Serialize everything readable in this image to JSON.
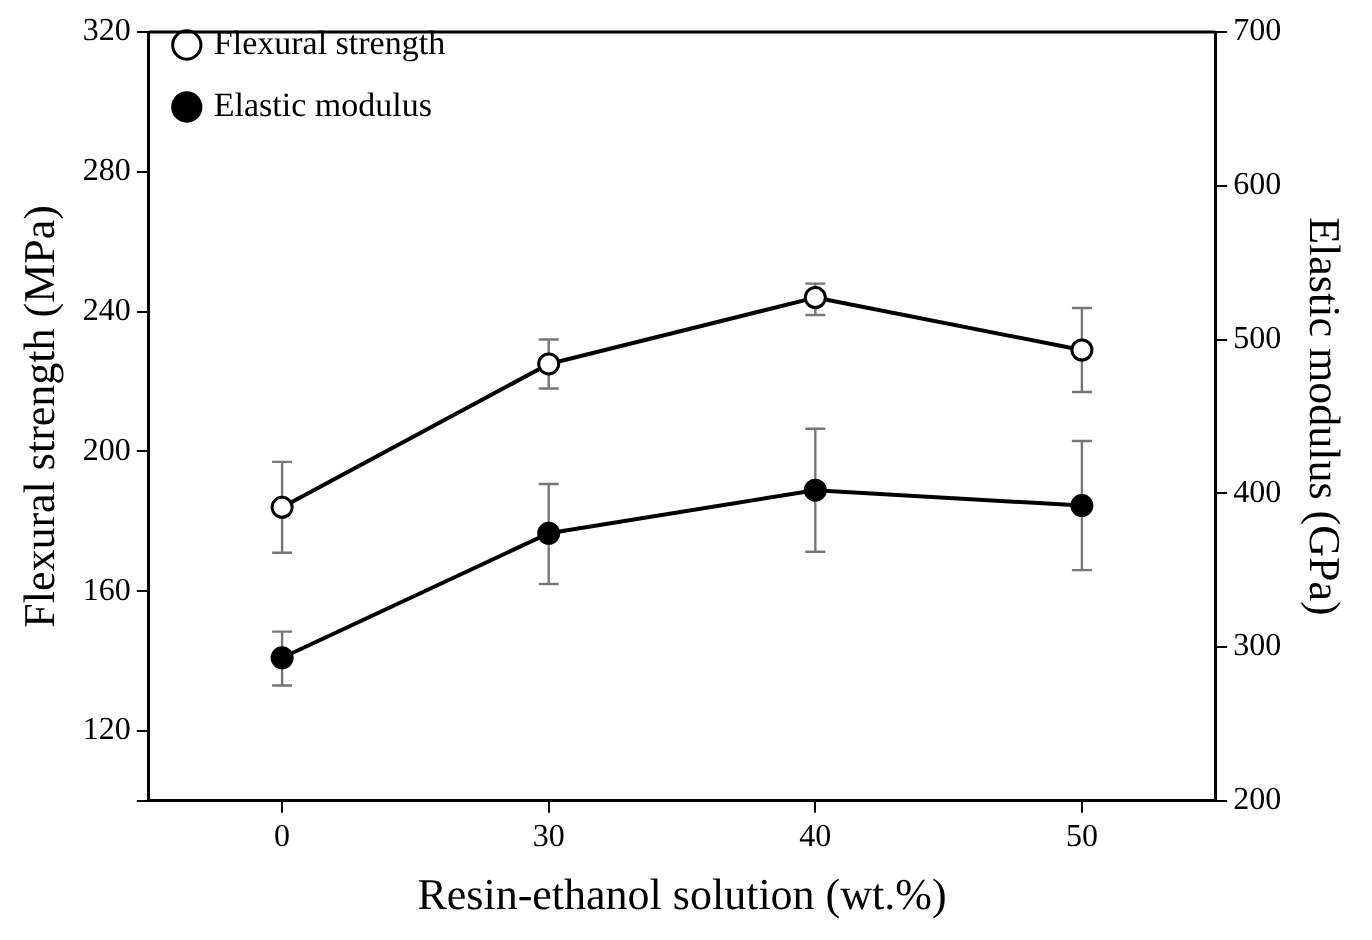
{
  "chart_data": {
    "type": "line",
    "xlabel": "Resin-ethanol solution (wt.%)",
    "ylabel": "Flexural strength (MPa)",
    "y2label": "Elastic modulus (GPa)",
    "categories": [
      "0",
      "30",
      "40",
      "50"
    ],
    "series": [
      {
        "name": "Flexural strength",
        "color": "#000000",
        "marker": "circle",
        "values": [
          184,
          225,
          244,
          229
        ],
        "errors": [
          [
            171,
            197
          ],
          [
            218,
            232
          ],
          [
            239,
            248
          ],
          [
            217,
            241
          ]
        ]
      },
      {
        "name": "Elastic modulus",
        "color": "#000000",
        "marker": "circle",
        "axis": "y2",
        "values": [
          293,
          374,
          402,
          392
        ],
        "errors": [
          [
            275,
            310
          ],
          [
            341,
            406
          ],
          [
            362,
            442
          ],
          [
            350,
            434
          ]
        ]
      }
    ],
    "ylim": [
      100,
      320
    ],
    "yticks": [
      {
        "value": 100,
        "label": null
      },
      120,
      160,
      200,
      240,
      280,
      320
    ],
    "y2lim": [
      200,
      700
    ],
    "y2ticks": [
      200,
      300,
      400,
      500,
      600,
      700
    ],
    "grid": false,
    "legend": "top left",
    "line_style": "solid"
  }
}
